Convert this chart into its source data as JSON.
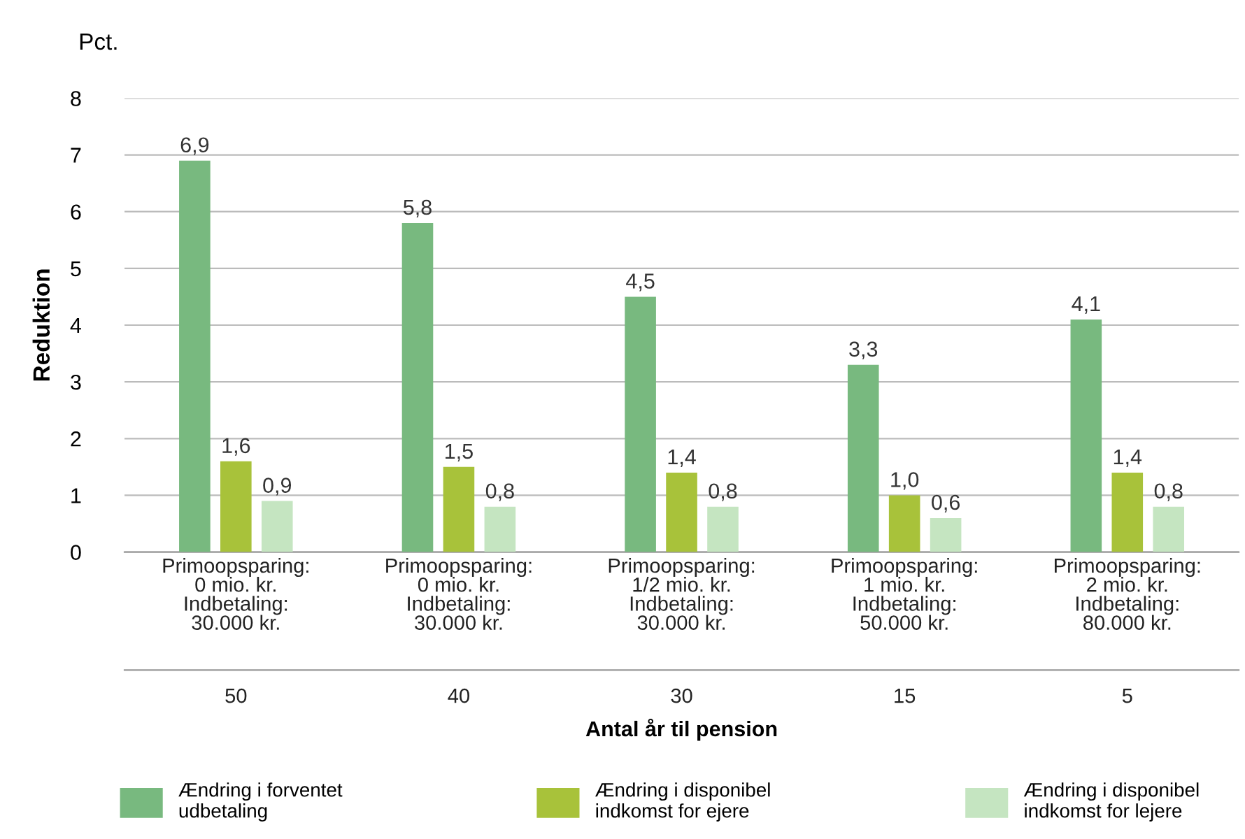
{
  "chart_data": {
    "type": "bar",
    "xlabel": "Antal år til pension",
    "ylabel": "Reduktion",
    "annotations": [
      "Pct.",
      "Primoopsparing:\n0 mio. kr.\nIndbetaling:\n30.000 kr.",
      "Primoopsparing:\n0 mio. kr.\nIndbetaling:\n30.000 kr.",
      "Primoopsparing:\n1/2 mio. kr.\nIndbetaling:\n30.000 kr.",
      "Primoopsparing:\n1 mio. kr.\nIndbetaling:\n50.000 kr.",
      "Primoopsparing:\n2 mio. kr.\nIndbetaling:\n80.000 kr."
    ],
    "categories": [
      "50",
      "40",
      "30",
      "15",
      "5"
    ],
    "series": [
      {
        "name": "Ændring i forventet\nudbetaling",
        "color": "#78b97f",
        "values": [
          6.9,
          5.8,
          4.5,
          3.3,
          4.1
        ],
        "value_labels": [
          "6,9",
          "5,8",
          "4,5",
          "3,3",
          "4,1"
        ]
      },
      {
        "name": "Ændring i disponibel\nindkomst for ejere",
        "color": "#a8c23a",
        "values": [
          1.6,
          1.5,
          1.4,
          1.0,
          1.4
        ],
        "value_labels": [
          "1,6",
          "1,5",
          "1,4",
          "1,0",
          "1,4"
        ]
      },
      {
        "name": "Ændring i disponibel\nindkomst for lejere",
        "color": "#c5e5c1",
        "values": [
          0.9,
          0.8,
          0.8,
          0.6,
          0.8
        ],
        "value_labels": [
          "0,9",
          "0,8",
          "0,8",
          "0,6",
          "0,8"
        ]
      }
    ],
    "ylim": [
      0,
      8
    ],
    "yticks": [
      0,
      1,
      2,
      3,
      4,
      5,
      6,
      7,
      8
    ],
    "grid": "y",
    "legend": "bottom"
  }
}
